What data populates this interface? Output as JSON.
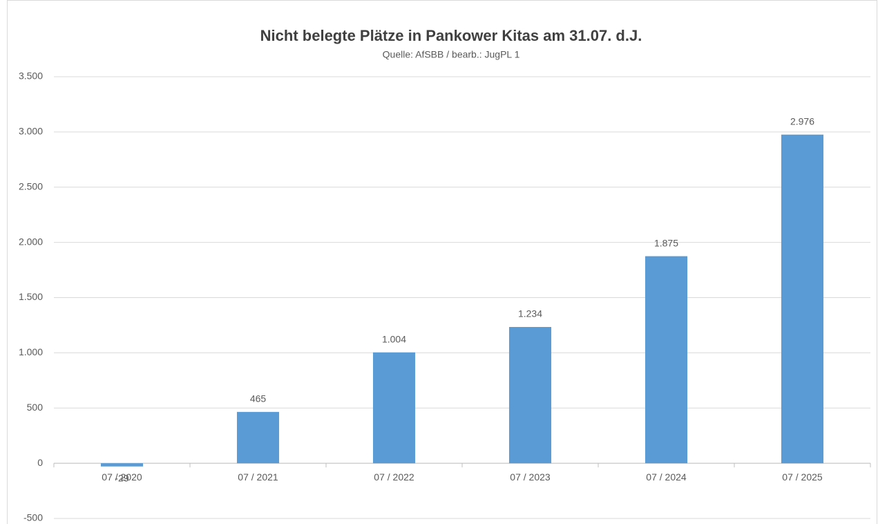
{
  "chart_data": {
    "type": "bar",
    "title": "Nicht belegte Plätze in Pankower Kitas am 31.07. d.J.",
    "subtitle": "Quelle: AfSBB / bearb.: JugPL 1",
    "categories": [
      "07 / 2020",
      "07 / 2021",
      "07 / 2022",
      "07 / 2023",
      "07 / 2024",
      "07 / 2025"
    ],
    "values": [
      -29,
      465,
      1004,
      1234,
      1875,
      2976
    ],
    "value_labels": [
      "-29",
      "465",
      "1.004",
      "1.234",
      "1.875",
      "2.976"
    ],
    "color": "#5b9bd5",
    "ylim": [
      -500,
      3500
    ],
    "yticks": [
      -500,
      0,
      500,
      {
        "value": 1000,
        "label": "1.000"
      },
      {
        "value": 1500,
        "label": "1.500"
      },
      {
        "value": 2000,
        "label": "2.000"
      },
      {
        "value": 2500,
        "label": "2.500"
      },
      {
        "value": 3000,
        "label": "3.000"
      },
      {
        "value": 3500,
        "label": "3.500"
      }
    ],
    "grid": true
  }
}
